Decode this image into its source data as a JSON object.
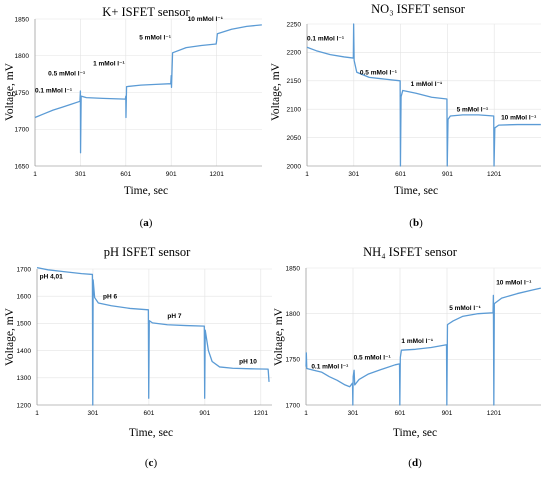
{
  "chart_data": [
    {
      "type": "line",
      "title": "K+ ISFET sensor",
      "xlabel": "Time, sec",
      "ylabel": "Voltage, mV",
      "panel_letter": "a",
      "xlim": [
        1,
        1501
      ],
      "ylim": [
        1650,
        1850
      ],
      "x_ticks": [
        "1",
        "301",
        "601",
        "901",
        "1201"
      ],
      "y_ticks": [
        "1650",
        "1700",
        "1750",
        "1800",
        "1850"
      ],
      "grid": true,
      "series": [
        {
          "color": "#5b9bd5",
          "points": [
            [
              1,
              1716
            ],
            [
              60,
              1721
            ],
            [
              120,
              1726
            ],
            [
              180,
              1730
            ],
            [
              240,
              1734
            ],
            [
              298,
              1738
            ],
            [
              301,
              1752
            ],
            [
              302,
              1668
            ],
            [
              306,
              1745
            ],
            [
              340,
              1743
            ],
            [
              450,
              1742
            ],
            [
              598,
              1741
            ],
            [
              601,
              1745
            ],
            [
              602,
              1716
            ],
            [
              606,
              1758
            ],
            [
              700,
              1760
            ],
            [
              800,
              1761
            ],
            [
              898,
              1762
            ],
            [
              901,
              1773
            ],
            [
              903,
              1757
            ],
            [
              910,
              1804
            ],
            [
              1000,
              1811
            ],
            [
              1100,
              1814
            ],
            [
              1198,
              1816
            ],
            [
              1201,
              1820
            ],
            [
              1206,
              1830
            ],
            [
              1300,
              1836
            ],
            [
              1400,
              1840
            ],
            [
              1500,
              1842
            ]
          ]
        }
      ],
      "annotations": [
        {
          "text": "0.1 mMol l⁻¹",
          "x": 1,
          "y": 1750
        },
        {
          "text": "0.5 mMol l⁻¹",
          "x": 88,
          "y": 1773
        },
        {
          "text": "1 mMol l⁻¹",
          "x": 385,
          "y": 1787
        },
        {
          "text": "5 mMol l⁻¹",
          "x": 690,
          "y": 1822
        },
        {
          "text": "10 mMol l⁻¹",
          "x": 1010,
          "y": 1847
        }
      ]
    },
    {
      "type": "line",
      "title": "NO₃ ISFET sensor",
      "xlabel": "Time, sec",
      "ylabel": "Voltage, mV",
      "panel_letter": "b",
      "xlim": [
        1,
        1501
      ],
      "ylim": [
        2000,
        2250
      ],
      "x_ticks": [
        "1",
        "301",
        "601",
        "901",
        "1201"
      ],
      "y_ticks": [
        "2000",
        "2050",
        "2100",
        "2150",
        "2200",
        "2250"
      ],
      "grid": true,
      "series": [
        {
          "color": "#5b9bd5",
          "points": [
            [
              1,
              2209
            ],
            [
              60,
              2203
            ],
            [
              150,
              2196
            ],
            [
              240,
              2192
            ],
            [
              298,
              2190
            ],
            [
              300,
              2250
            ],
            [
              303,
              2186
            ],
            [
              320,
              2165
            ],
            [
              400,
              2156
            ],
            [
              500,
              2153
            ],
            [
              598,
              2150
            ],
            [
              600,
              2000
            ],
            [
              604,
              2122
            ],
            [
              615,
              2133
            ],
            [
              700,
              2128
            ],
            [
              800,
              2121
            ],
            [
              898,
              2118
            ],
            [
              900,
              2000
            ],
            [
              905,
              2082
            ],
            [
              920,
              2088
            ],
            [
              1000,
              2090
            ],
            [
              1100,
              2090
            ],
            [
              1198,
              2088
            ],
            [
              1200,
              2000
            ],
            [
              1205,
              2067
            ],
            [
              1230,
              2072
            ],
            [
              1350,
              2073
            ],
            [
              1500,
              2073
            ]
          ]
        }
      ],
      "annotations": [
        {
          "text": "0.1 mMol l⁻¹",
          "x": 1,
          "y": 2221
        },
        {
          "text": "0.5 mMol l⁻¹",
          "x": 340,
          "y": 2161
        },
        {
          "text": "1 mMol l⁻¹",
          "x": 665,
          "y": 2141
        },
        {
          "text": "5 mMol l⁻¹",
          "x": 960,
          "y": 2096
        },
        {
          "text": "10 mMol l⁻¹",
          "x": 1245,
          "y": 2082
        }
      ]
    },
    {
      "type": "line",
      "title": "pH ISFET sensor",
      "xlabel": "Time, sec",
      "ylabel": "Voltage, mV",
      "panel_letter": "c",
      "xlim": [
        1,
        1261
      ],
      "ylim": [
        1200,
        1700
      ],
      "x_ticks": [
        "1",
        "301",
        "601",
        "901",
        "1201"
      ],
      "y_ticks": [
        "1200",
        "1300",
        "1400",
        "1500",
        "1600",
        "1700"
      ],
      "grid": true,
      "series": [
        {
          "color": "#5b9bd5",
          "points": [
            [
              1,
              1705
            ],
            [
              60,
              1697
            ],
            [
              150,
              1690
            ],
            [
              240,
              1683
            ],
            [
              298,
              1680
            ],
            [
              300,
              1200
            ],
            [
              302,
              1660
            ],
            [
              310,
              1595
            ],
            [
              330,
              1575
            ],
            [
              400,
              1565
            ],
            [
              500,
              1555
            ],
            [
              598,
              1550
            ],
            [
              600,
              1225
            ],
            [
              603,
              1510
            ],
            [
              620,
              1502
            ],
            [
              700,
              1495
            ],
            [
              800,
              1492
            ],
            [
              898,
              1490
            ],
            [
              900,
              1225
            ],
            [
              903,
              1475
            ],
            [
              920,
              1400
            ],
            [
              940,
              1360
            ],
            [
              980,
              1340
            ],
            [
              1050,
              1335
            ],
            [
              1150,
              1333
            ],
            [
              1240,
              1332
            ],
            [
              1241,
              1325
            ],
            [
              1245,
              1285
            ]
          ]
        }
      ],
      "annotations": [
        {
          "text": "pH 4,01",
          "x": 15,
          "y": 1665
        },
        {
          "text": "pH 6",
          "x": 355,
          "y": 1592
        },
        {
          "text": "pH 7",
          "x": 700,
          "y": 1520
        },
        {
          "text": "pH 10",
          "x": 1085,
          "y": 1352
        }
      ]
    },
    {
      "type": "line",
      "title": "NH₄ ISFET sensor",
      "xlabel": "Time, sec",
      "ylabel": "Voltage, mV",
      "panel_letter": "d",
      "xlim": [
        1,
        1501
      ],
      "ylim": [
        1700,
        1850
      ],
      "x_ticks": [
        "1",
        "301",
        "601",
        "901",
        "1201"
      ],
      "y_ticks": [
        "1700",
        "1750",
        "1800",
        "1850"
      ],
      "grid": true,
      "series": [
        {
          "color": "#5b9bd5",
          "points": [
            [
              1,
              1742
            ],
            [
              3,
              1757
            ],
            [
              6,
              1740
            ],
            [
              50,
              1738
            ],
            [
              100,
              1736
            ],
            [
              150,
              1731
            ],
            [
              200,
              1727
            ],
            [
              250,
              1722
            ],
            [
              280,
              1720
            ],
            [
              298,
              1724
            ],
            [
              300,
              1700
            ],
            [
              302,
              1731
            ],
            [
              308,
              1738
            ],
            [
              312,
              1722
            ],
            [
              340,
              1728
            ],
            [
              400,
              1734
            ],
            [
              500,
              1740
            ],
            [
              570,
              1744
            ],
            [
              598,
              1745
            ],
            [
              600,
              1700
            ],
            [
              603,
              1752
            ],
            [
              610,
              1760
            ],
            [
              700,
              1761
            ],
            [
              800,
              1763
            ],
            [
              898,
              1766
            ],
            [
              900,
              1700
            ],
            [
              904,
              1788
            ],
            [
              940,
              1792
            ],
            [
              1000,
              1797
            ],
            [
              1100,
              1800
            ],
            [
              1195,
              1801
            ],
            [
              1197,
              1820
            ],
            [
              1200,
              1700
            ],
            [
              1203,
              1811
            ],
            [
              1250,
              1817
            ],
            [
              1350,
              1822
            ],
            [
              1450,
              1826
            ],
            [
              1500,
              1828
            ]
          ]
        }
      ],
      "annotations": [
        {
          "text": "0.1 mMol l⁻¹",
          "x": 35,
          "y": 1740
        },
        {
          "text": "0.5 mMol l⁻¹",
          "x": 305,
          "y": 1750
        },
        {
          "text": "1 mMol l⁻¹",
          "x": 610,
          "y": 1768
        },
        {
          "text": "5 mMol l⁻¹",
          "x": 915,
          "y": 1804
        },
        {
          "text": "10 mMol l⁻¹",
          "x": 1215,
          "y": 1832
        }
      ]
    }
  ]
}
